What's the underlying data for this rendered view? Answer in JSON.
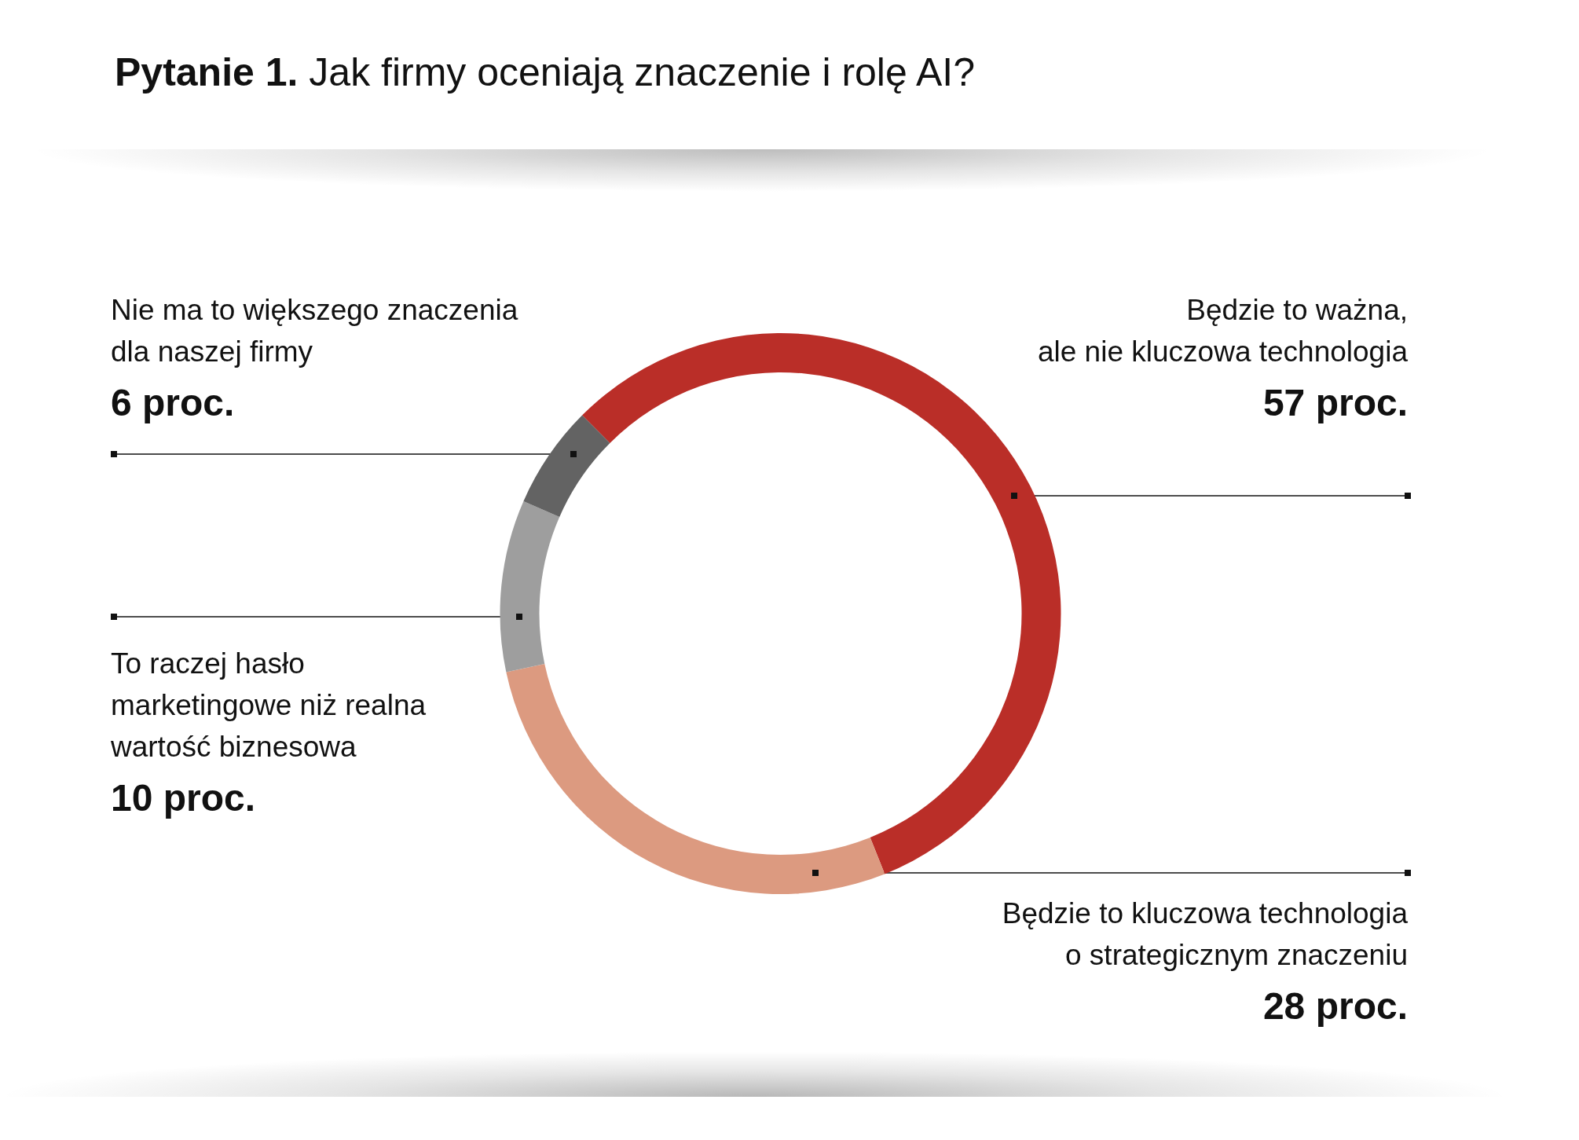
{
  "chart_data": {
    "type": "donut",
    "title": "Pytanie 1. Jak firmy oceniają znaczenie i rolę AI?",
    "categories": [
      "Będzie to ważna,\nale nie kluczowa technologia",
      "Będzie to kluczowa technologia\no strategicznym znaczeniu",
      "To raczej hasło\nmarketingowe niż realna\nwartość biznesowa",
      "Nie ma to większego znaczenia\ndla naszej firmy"
    ],
    "values": [
      57,
      28,
      10,
      6
    ],
    "colors": [
      "#ba2e28",
      "#dc9a80",
      "#9e9e9e",
      "#636363"
    ],
    "value_labels": [
      "57 proc.",
      "28 proc.",
      "10 proc.",
      "6 proc."
    ]
  }
}
